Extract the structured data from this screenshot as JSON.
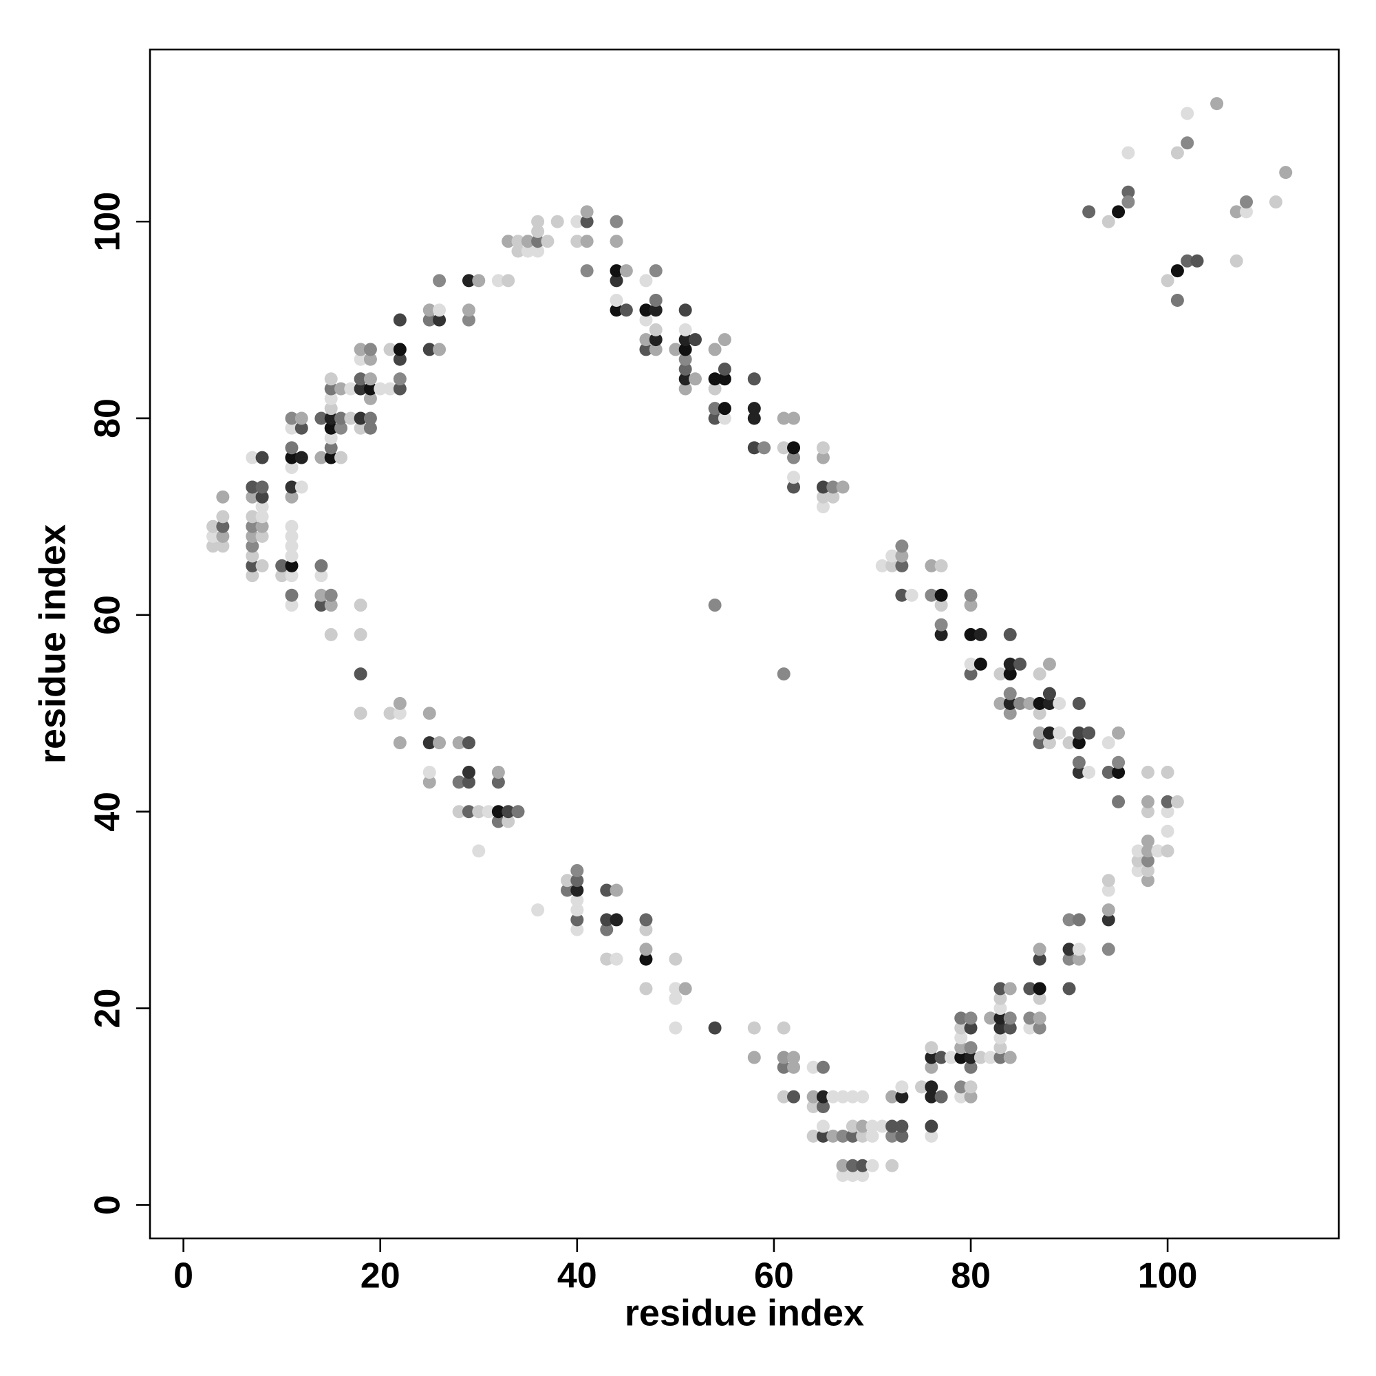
{
  "chart_data": {
    "type": "scatter",
    "xlabel": "residue index",
    "ylabel": "residue index",
    "xlim": [
      -3.4,
      117.4
    ],
    "ylim": [
      -3.4,
      117.5
    ],
    "xticks": [
      0,
      20,
      40,
      60,
      80,
      100
    ],
    "yticks": [
      0,
      20,
      40,
      60,
      80,
      100
    ],
    "grid": false,
    "x": [
      105,
      102,
      96,
      101,
      102,
      112,
      96,
      96,
      92,
      95,
      94,
      107,
      108,
      108,
      111,
      102,
      103,
      107,
      101,
      100,
      101,
      3,
      3,
      3,
      4,
      4,
      4,
      4,
      4,
      7,
      7,
      7,
      7,
      7,
      7,
      7,
      7,
      7,
      7,
      8,
      8,
      8,
      8,
      8,
      8,
      8,
      8,
      10,
      10,
      11,
      11,
      11,
      11,
      11,
      11,
      11,
      11,
      11,
      11,
      11,
      11,
      11,
      11,
      11,
      12,
      12,
      12,
      12,
      14,
      14,
      14,
      14,
      14,
      14,
      15,
      15,
      15,
      15,
      15,
      15,
      15,
      15,
      15,
      15,
      15,
      15,
      16,
      16,
      16,
      16,
      17,
      17,
      18,
      18,
      18,
      18,
      18,
      18,
      18,
      18,
      18,
      18,
      19,
      19,
      19,
      19,
      19,
      19,
      19,
      20,
      21,
      21,
      21,
      22,
      22,
      22,
      22,
      22,
      22,
      22,
      22,
      25,
      25,
      25,
      25,
      25,
      25,
      25,
      26,
      26,
      26,
      26,
      26,
      28,
      28,
      28,
      29,
      29,
      29,
      29,
      29,
      29,
      29,
      30,
      30,
      30,
      31,
      32,
      32,
      32,
      32,
      32,
      33,
      33,
      33,
      33,
      34,
      34,
      34,
      35,
      35,
      36,
      36,
      36,
      36,
      36,
      37,
      38,
      39,
      39,
      40,
      40,
      40,
      40,
      40,
      40,
      40,
      40,
      40,
      41,
      41,
      41,
      41,
      43,
      43,
      43,
      43,
      44,
      44,
      44,
      44,
      44,
      44,
      44,
      44,
      44,
      45,
      45,
      47,
      47,
      47,
      47,
      47,
      47,
      47,
      47,
      47,
      47,
      48,
      48,
      48,
      48,
      48,
      48,
      50,
      50,
      50,
      50,
      50,
      51,
      51,
      51,
      51,
      51,
      51,
      51,
      51,
      51,
      52,
      52,
      54,
      54,
      54,
      54,
      54,
      54,
      54,
      55,
      55,
      55,
      55,
      55,
      58,
      58,
      58,
      58,
      58,
      58,
      59,
      61,
      61,
      61,
      61,
      61,
      61,
      61,
      62,
      62,
      62,
      62,
      62,
      62,
      62,
      62,
      64,
      64,
      64,
      64,
      65,
      65,
      65,
      65,
      65,
      65,
      65,
      65,
      65,
      65,
      66,
      66,
      66,
      66,
      67,
      67,
      67,
      67,
      67,
      68,
      68,
      68,
      68,
      68,
      69,
      69,
      69,
      69,
      69,
      70,
      70,
      70,
      71,
      71,
      72,
      72,
      72,
      72,
      72,
      72,
      73,
      73,
      73,
      73,
      73,
      73,
      73,
      73,
      74,
      75,
      76,
      76,
      76,
      76,
      76,
      76,
      76,
      76,
      76,
      77,
      77,
      77,
      77,
      77,
      77,
      77,
      78,
      79,
      79,
      79,
      79,
      79,
      79,
      79,
      80,
      80,
      80,
      80,
      80,
      80,
      80,
      80,
      80,
      80,
      80,
      80,
      81,
      81,
      81,
      82,
      82,
      83,
      83,
      83,
      83,
      83,
      83,
      83,
      83,
      83,
      83,
      84,
      84,
      84,
      84,
      84,
      84,
      84,
      84,
      84,
      84,
      85,
      85,
      86,
      86,
      86,
      86,
      87,
      87,
      87,
      87,
      87,
      87,
      87,
      87,
      87,
      87,
      87,
      88,
      88,
      88,
      88,
      88,
      89,
      89,
      90,
      90,
      90,
      90,
      90,
      91,
      91,
      91,
      91,
      91,
      91,
      91,
      91,
      92,
      92,
      94,
      94,
      94,
      94,
      94,
      94,
      94,
      95,
      95,
      95,
      95,
      97,
      97,
      97,
      98,
      98,
      98,
      98,
      98,
      98,
      98,
      98,
      99,
      100,
      100,
      100,
      100,
      100,
      101
    ],
    "y": [
      112,
      111,
      107,
      107,
      108,
      105,
      103,
      102,
      101,
      101,
      100,
      101,
      101,
      102,
      102,
      96,
      96,
      96,
      95,
      94,
      92,
      67,
      68,
      69,
      67,
      68,
      69,
      70,
      72,
      64,
      65,
      66,
      67,
      68,
      69,
      70,
      72,
      73,
      76,
      65,
      68,
      69,
      70,
      71,
      72,
      73,
      76,
      64,
      65,
      61,
      62,
      64,
      65,
      66,
      67,
      68,
      69,
      72,
      73,
      75,
      76,
      77,
      79,
      80,
      73,
      76,
      79,
      80,
      61,
      62,
      64,
      65,
      76,
      80,
      58,
      61,
      62,
      76,
      77,
      78,
      79,
      80,
      81,
      82,
      83,
      84,
      76,
      79,
      80,
      83,
      80,
      83,
      50,
      54,
      58,
      61,
      79,
      80,
      83,
      84,
      86,
      87,
      79,
      80,
      82,
      83,
      84,
      86,
      87,
      83,
      50,
      83,
      87,
      47,
      50,
      51,
      83,
      84,
      86,
      87,
      90,
      43,
      44,
      47,
      50,
      87,
      90,
      91,
      47,
      87,
      90,
      91,
      94,
      40,
      43,
      47,
      40,
      43,
      44,
      47,
      90,
      91,
      94,
      36,
      40,
      94,
      40,
      39,
      40,
      43,
      44,
      94,
      39,
      40,
      94,
      98,
      40,
      97,
      98,
      97,
      98,
      30,
      97,
      98,
      99,
      100,
      98,
      100,
      32,
      33,
      28,
      29,
      30,
      31,
      32,
      33,
      34,
      98,
      100,
      95,
      98,
      100,
      101,
      25,
      28,
      29,
      32,
      25,
      29,
      32,
      91,
      92,
      94,
      95,
      98,
      100,
      91,
      95,
      22,
      25,
      26,
      28,
      29,
      87,
      88,
      90,
      91,
      94,
      87,
      88,
      89,
      91,
      92,
      95,
      18,
      21,
      22,
      25,
      87,
      22,
      83,
      84,
      85,
      86,
      87,
      88,
      89,
      91,
      84,
      88,
      18,
      61,
      80,
      81,
      83,
      84,
      87,
      80,
      81,
      84,
      85,
      88,
      15,
      18,
      77,
      80,
      81,
      84,
      77,
      11,
      14,
      15,
      18,
      54,
      77,
      80,
      11,
      14,
      15,
      73,
      74,
      76,
      77,
      80,
      7,
      10,
      11,
      14,
      7,
      8,
      10,
      11,
      14,
      71,
      72,
      73,
      76,
      77,
      7,
      11,
      72,
      73,
      3,
      4,
      7,
      11,
      73,
      3,
      4,
      7,
      8,
      11,
      3,
      4,
      7,
      8,
      11,
      4,
      7,
      8,
      8,
      65,
      4,
      7,
      8,
      11,
      65,
      66,
      7,
      8,
      11,
      12,
      62,
      65,
      66,
      67,
      62,
      12,
      7,
      8,
      11,
      12,
      14,
      15,
      16,
      62,
      65,
      11,
      15,
      58,
      59,
      61,
      62,
      65,
      15,
      11,
      12,
      15,
      16,
      17,
      18,
      19,
      11,
      12,
      14,
      15,
      16,
      18,
      19,
      54,
      55,
      58,
      61,
      62,
      15,
      55,
      58,
      15,
      19,
      15,
      16,
      17,
      18,
      19,
      20,
      21,
      22,
      51,
      54,
      15,
      18,
      19,
      22,
      50,
      51,
      52,
      54,
      55,
      58,
      51,
      55,
      18,
      19,
      22,
      51,
      18,
      19,
      21,
      22,
      25,
      26,
      47,
      48,
      50,
      51,
      54,
      47,
      48,
      51,
      52,
      55,
      48,
      51,
      22,
      25,
      26,
      29,
      47,
      25,
      26,
      29,
      44,
      45,
      47,
      48,
      51,
      44,
      48,
      26,
      29,
      30,
      32,
      33,
      44,
      47,
      41,
      44,
      45,
      48,
      34,
      35,
      36,
      33,
      34,
      35,
      36,
      37,
      40,
      41,
      44,
      36,
      36,
      38,
      40,
      41,
      44,
      41
    ],
    "colors": [
      "#aaa",
      "#ddd",
      "#ddd",
      "#ccc",
      "#888",
      "#aaa",
      "#666",
      "#888",
      "#666",
      "#111",
      "#ccc",
      "#aaa",
      "#ddd",
      "#888",
      "#ccc",
      "#666",
      "#555",
      "#ccc",
      "#111",
      "#ccc",
      "#777",
      "#ccc",
      "#ddd",
      "#ccc",
      "#ccc",
      "#aaa",
      "#666",
      "#ccc",
      "#aaa",
      "#ccc",
      "#555",
      "#ccc",
      "#888",
      "#aaa",
      "#888",
      "#ccc",
      "#aaa",
      "#555",
      "#ddd",
      "#ccc",
      "#ccc",
      "#aaa",
      "#ddd",
      "#ddd",
      "#444",
      "#666",
      "#444",
      "#ccc",
      "#666",
      "#ddd",
      "#777",
      "#ddd",
      "#111",
      "#ddd",
      "#ddd",
      "#ddd",
      "#ddd",
      "#aaa",
      "#333",
      "#ddd",
      "#111",
      "#777",
      "#ddd",
      "#888",
      "#ddd",
      "#222",
      "#555",
      "#aaa",
      "#555",
      "#aaa",
      "#ddd",
      "#777",
      "#aaa",
      "#666",
      "#ccc",
      "#aaa",
      "#888",
      "#111",
      "#777",
      "#ddd",
      "#111",
      "#222",
      "#ccc",
      "#ddd",
      "#777",
      "#ccc",
      "#ccc",
      "#888",
      "#777",
      "#aaa",
      "#ccc",
      "#ddd",
      "#ccc",
      "#555",
      "#ccc",
      "#ccc",
      "#ccc",
      "#333",
      "#333",
      "#666",
      "#ddd",
      "#aaa",
      "#777",
      "#777",
      "#aaa",
      "#111",
      "#aaa",
      "#aaa",
      "#888",
      "#ddd",
      "#ccc",
      "#ddd",
      "#ccc",
      "#aaa",
      "#ddd",
      "#aaa",
      "#555",
      "#888",
      "#444",
      "#111",
      "#444",
      "#aaa",
      "#ddd",
      "#333",
      "#aaa",
      "#444",
      "#777",
      "#aaa",
      "#aaa",
      "#aaa",
      "#333",
      "#ddd",
      "#888",
      "#ccc",
      "#777",
      "#aaa",
      "#666",
      "#555",
      "#333",
      "#555",
      "#888",
      "#aaa",
      "#222",
      "#ddd",
      "#ccc",
      "#aaa",
      "#ddd",
      "#777",
      "#111",
      "#666",
      "#aaa",
      "#ddd",
      "#ccc",
      "#444",
      "#ccc",
      "#aaa",
      "#777",
      "#ccc",
      "#ccc",
      "#ddd",
      "#aaa",
      "#ddd",
      "#ddd",
      "#777",
      "#ccc",
      "#ccc",
      "#ccc",
      "#ccc",
      "#777",
      "#ccc",
      "#ddd",
      "#666",
      "#ddd",
      "#ddd",
      "#222",
      "#666",
      "#888",
      "#ccc",
      "#ddd",
      "#888",
      "#aaa",
      "#555",
      "#aaa",
      "#ccc",
      "#777",
      "#444",
      "#555",
      "#ddd",
      "#222",
      "#aaa",
      "#111",
      "#ddd",
      "#333",
      "#111",
      "#aaa",
      "#888",
      "#555",
      "#aaa",
      "#ccc",
      "#111",
      "#aaa",
      "#ccc",
      "#666",
      "#555",
      "#aaa",
      "#ddd",
      "#111",
      "#ddd",
      "#aaa",
      "#222",
      "#ccc",
      "#222",
      "#777",
      "#888",
      "#ddd",
      "#ddd",
      "#ddd",
      "#ccc",
      "#aaa",
      "#aaa",
      "#aaa",
      "#222",
      "#666",
      "#888",
      "#111",
      "#222",
      "#ddd",
      "#444",
      "#aaa",
      "#444",
      "#444",
      "#888",
      "#555",
      "#777",
      "#ccc",
      "#111",
      "#aaa",
      "#ddd",
      "#111",
      "#111",
      "#555",
      "#aaa",
      "#aaa",
      "#ccc",
      "#444",
      "#222",
      "#222",
      "#555",
      "#888",
      "#ccc",
      "#777",
      "#999",
      "#ccc",
      "#888",
      "#ccc",
      "#aaa",
      "#555",
      "#aaa",
      "#aaa",
      "#555",
      "#ddd",
      "#888",
      "#111",
      "#aaa",
      "#ccc",
      "#ccc",
      "#aaa",
      "#ddd",
      "#444",
      "#ddd",
      "#666",
      "#222",
      "#777",
      "#ddd",
      "#ccc",
      "#444",
      "#aaa",
      "#ccc",
      "#aaa",
      "#ddd",
      "#ccc",
      "#888",
      "#ddd",
      "#aaa",
      "#888",
      "#ddd",
      "#aaa",
      "#ddd",
      "#666",
      "#666",
      "#ccc",
      "#ddd",
      "#ddd",
      "#555",
      "#ccc",
      "#aaa",
      "#ddd",
      "#ddd",
      "#ddd",
      "#ddd",
      "#ddd",
      "#ddd",
      "#ccc",
      "#888",
      "#555",
      "#aaa",
      "#ccc",
      "#ddd",
      "#666",
      "#555",
      "#222",
      "#ddd",
      "#555",
      "#666",
      "#aaa",
      "#888",
      "#ddd",
      "#ccc",
      "#ddd",
      "#444",
      "#222",
      "#222",
      "#aaa",
      "#222",
      "#ccc",
      "#888",
      "#aaa",
      "#666",
      "#555",
      "#222",
      "#888",
      "#ccc",
      "#111",
      "#ccc",
      "#ddd",
      "#ddd",
      "#888",
      "#111",
      "#aaa",
      "#ddd",
      "#ccc",
      "#777",
      "#aaa",
      "#ccc",
      "#777",
      "#222",
      "#888",
      "#444",
      "#888",
      "#666",
      "#ddd",
      "#111",
      "#aaa",
      "#888",
      "#ccc",
      "#111",
      "#222",
      "#ddd",
      "#aaa",
      "#777",
      "#ccc",
      "#ddd",
      "#333",
      "#222",
      "#ddd",
      "#ccc",
      "#555",
      "#aaa",
      "#ccc",
      "#aaa",
      "#555",
      "#888",
      "#aaa",
      "#999",
      "#222",
      "#888",
      "#111",
      "#222",
      "#555",
      "#888",
      "#555",
      "#ddd",
      "#888",
      "#555",
      "#aaa",
      "#888",
      "#aaa",
      "#ccc",
      "#111",
      "#444",
      "#aaa",
      "#666",
      "#aaa",
      "#ccc",
      "#111",
      "#ccc",
      "#ccc",
      "#222",
      "#222",
      "#444",
      "#aaa",
      "#ddd",
      "#ddd",
      "#555",
      "#888",
      "#333",
      "#888",
      "#ccc",
      "#aaa",
      "#ddd",
      "#777",
      "#333",
      "#777",
      "#111",
      "#444",
      "#555",
      "#ddd",
      "#555",
      "#888",
      "#333",
      "#aaa",
      "#ddd",
      "#ccc",
      "#666",
      "#ddd",
      "#777",
      "#111",
      "#888",
      "#aaa",
      "#ddd",
      "#ccc",
      "#ddd",
      "#aaa",
      "#ccc",
      "#888",
      "#aaa",
      "#aaa",
      "#ccc",
      "#aaa",
      "#ccc",
      "#ddd",
      "#ccc",
      "#ddd",
      "#ddd",
      "#666",
      "#ccc",
      "#ccc"
    ]
  }
}
